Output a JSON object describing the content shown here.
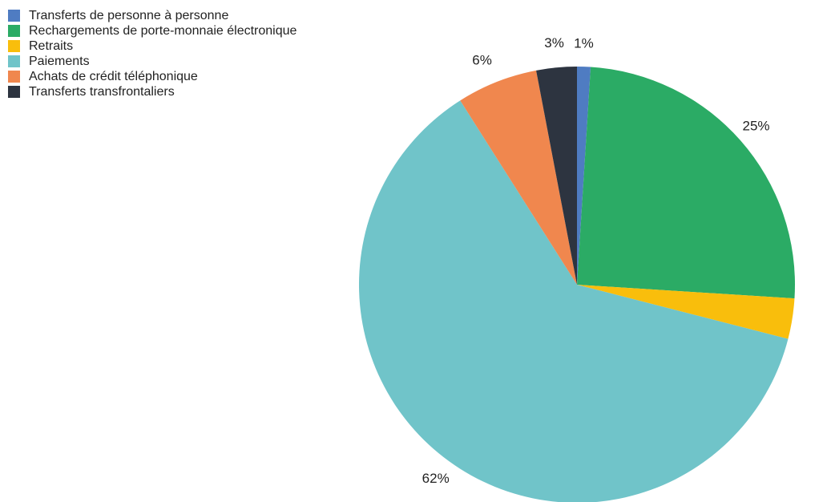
{
  "chart_data": {
    "type": "pie",
    "title": "",
    "slices": [
      {
        "label": "Transferts de personne à personne",
        "value": 1,
        "display": "1%",
        "color": "#4f7cc2"
      },
      {
        "label": "Rechargements de porte-monnaie électronique",
        "value": 25,
        "display": "25%",
        "color": "#2bab65"
      },
      {
        "label": "Retraits",
        "value": 3,
        "display": "3%",
        "color": "#f9be0c"
      },
      {
        "label": "Paiements",
        "value": 62,
        "display": "62%",
        "color": "#70c4c9"
      },
      {
        "label": "Achats de crédit téléphonique",
        "value": 6,
        "display": "6%",
        "color": "#f0874e"
      },
      {
        "label": "Transferts transfrontaliers",
        "value": 3,
        "display": "3%",
        "color": "#2d3440"
      }
    ],
    "legend_position": "top-left",
    "start_angle": "top",
    "direction": "clockwise"
  }
}
